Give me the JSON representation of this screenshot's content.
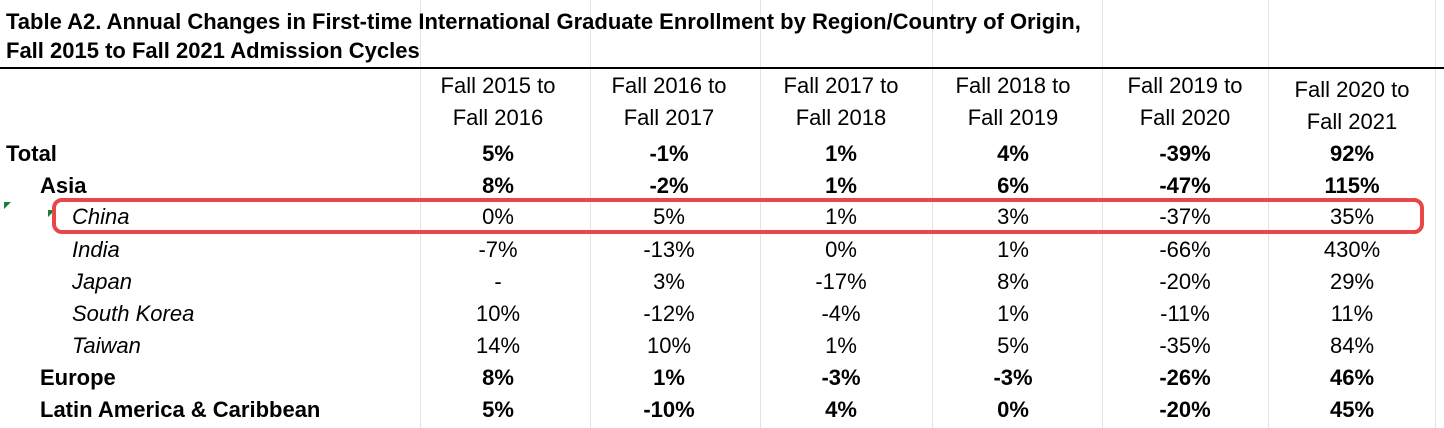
{
  "title": {
    "line1": "Table A2. Annual Changes in First-time International Graduate Enrollment by Region/Country of Origin,",
    "line2": "Fall 2015 to Fall 2021 Admission Cycles"
  },
  "columns": [
    {
      "line1": "Fall 2015 to",
      "line2": "Fall 2016"
    },
    {
      "line1": "Fall 2016 to",
      "line2": "Fall 2017"
    },
    {
      "line1": "Fall 2017 to",
      "line2": "Fall 2018"
    },
    {
      "line1": "Fall 2018 to",
      "line2": "Fall 2019"
    },
    {
      "line1": "Fall 2019 to",
      "line2": "Fall 2020"
    },
    {
      "line1": "Fall 2020 to",
      "line2": "Fall 2021"
    }
  ],
  "rows": [
    {
      "label": "Total",
      "style": "region",
      "values": [
        "5%",
        "-1%",
        "1%",
        "4%",
        "-39%",
        "92%"
      ]
    },
    {
      "label": "Asia",
      "style": "region",
      "values": [
        "8%",
        "-2%",
        "1%",
        "6%",
        "-47%",
        "115%"
      ]
    },
    {
      "label": "China",
      "style": "country",
      "values": [
        "0%",
        "5%",
        "1%",
        "3%",
        "-37%",
        "35%"
      ]
    },
    {
      "label": "India",
      "style": "country",
      "values": [
        "-7%",
        "-13%",
        "0%",
        "1%",
        "-66%",
        "430%"
      ]
    },
    {
      "label": "Japan",
      "style": "country",
      "values": [
        "-",
        "3%",
        "-17%",
        "8%",
        "-20%",
        "29%"
      ]
    },
    {
      "label": "South Korea",
      "style": "country",
      "values": [
        "10%",
        "-12%",
        "-4%",
        "1%",
        "-11%",
        "11%"
      ]
    },
    {
      "label": "Taiwan",
      "style": "country",
      "values": [
        "14%",
        "10%",
        "1%",
        "5%",
        "-35%",
        "84%"
      ]
    },
    {
      "label": "Europe",
      "style": "region",
      "values": [
        "8%",
        "1%",
        "-3%",
        "-3%",
        "-26%",
        "46%"
      ]
    },
    {
      "label": "Latin America & Caribbean",
      "style": "region",
      "values": [
        "5%",
        "-10%",
        "4%",
        "0%",
        "-20%",
        "45%"
      ]
    }
  ],
  "colors": {
    "highlight": "#e8474a",
    "gridline": "#e3e3e3",
    "cell_marker": "#1e7b34"
  }
}
